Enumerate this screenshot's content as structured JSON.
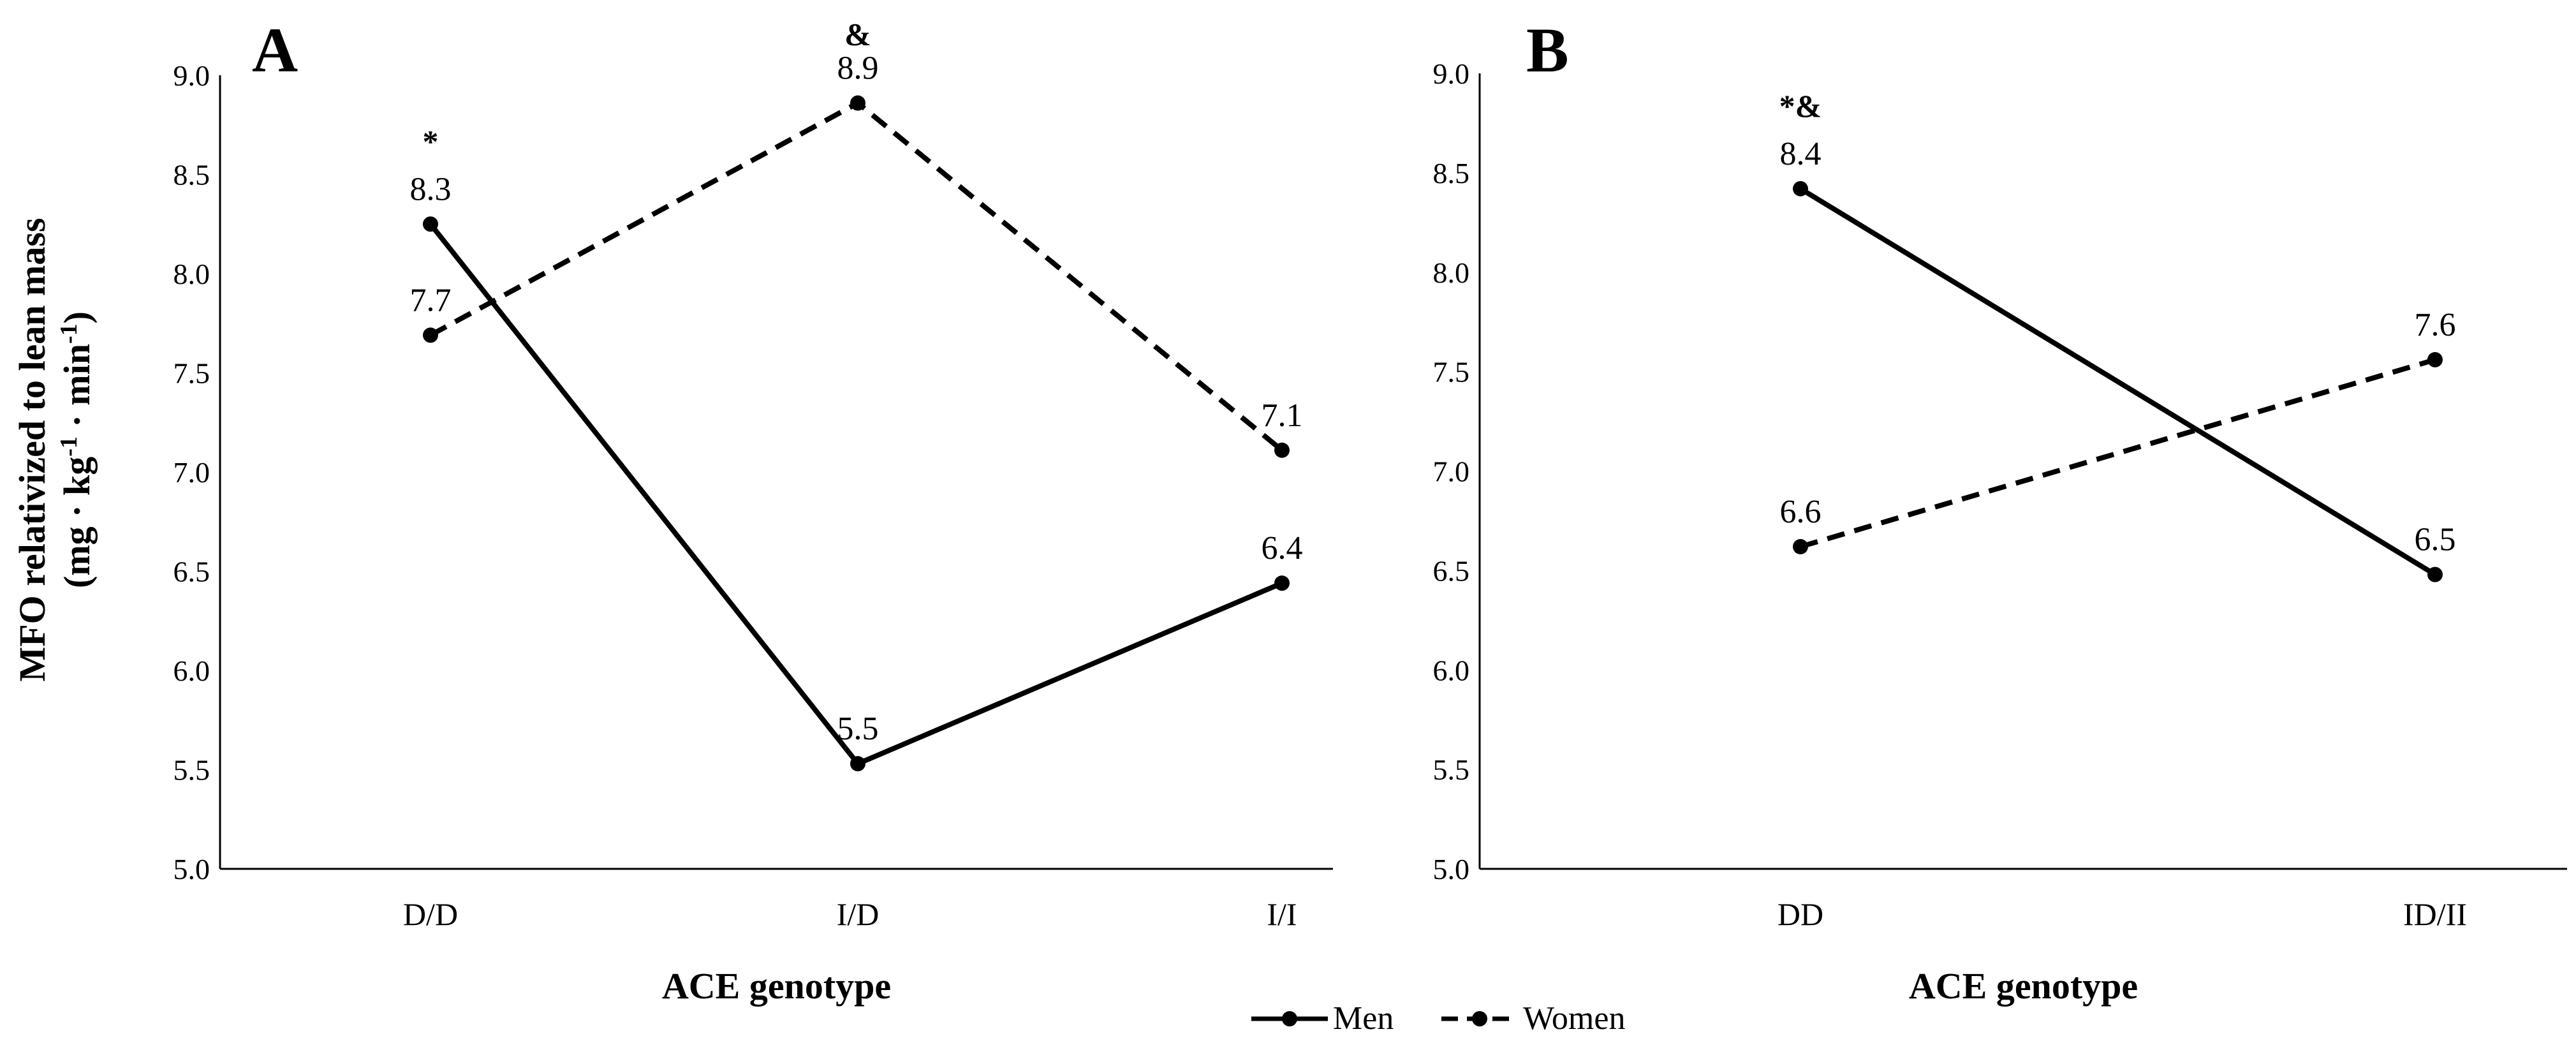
{
  "y_axis_title": {
    "line1": "MFO relativized to lean mass",
    "line2_prefix": "(mg · kg",
    "line2_sup1": "-1",
    "line2_mid": " · min",
    "line2_sup2": "-1",
    "line2_suffix": ")"
  },
  "legend": [
    {
      "name": "Men",
      "style": "solid"
    },
    {
      "name": "Women",
      "style": "dashed"
    }
  ],
  "chart_data": [
    {
      "type": "line",
      "panel_label": "A",
      "categories": [
        "D/D",
        "I/D",
        "I/I"
      ],
      "series": [
        {
          "name": "Men",
          "style": "solid",
          "values": [
            8.25,
            5.53,
            6.44
          ],
          "labels": [
            "8.3",
            "5.5",
            "6.4"
          ]
        },
        {
          "name": "Women",
          "style": "dashed",
          "values": [
            7.69,
            8.86,
            7.11
          ],
          "labels": [
            "7.7",
            "8.9",
            "7.1"
          ]
        }
      ],
      "annotations": [
        {
          "text": "*",
          "category": "D/D",
          "value": 8.67
        },
        {
          "text": "&",
          "category": "I/D",
          "value": 9.21
        }
      ],
      "xlabel": "ACE genotype",
      "ylabel": "MFO relativized to lean mass (mg · kg-1 · min-1)",
      "ylim": [
        5.0,
        9.0
      ],
      "yticks": [
        "5.0",
        "5.5",
        "6.0",
        "6.5",
        "7.0",
        "7.5",
        "8.0",
        "8.5",
        "9.0"
      ],
      "grid": false
    },
    {
      "type": "line",
      "panel_label": "B",
      "categories": [
        "DD",
        "ID/II"
      ],
      "series": [
        {
          "name": "Men",
          "style": "solid",
          "values": [
            8.42,
            6.48
          ],
          "labels": [
            "8.4",
            "6.5"
          ]
        },
        {
          "name": "Women",
          "style": "dashed",
          "values": [
            6.62,
            7.56
          ],
          "labels": [
            "6.6",
            "7.6"
          ]
        }
      ],
      "annotations": [
        {
          "text": "*&",
          "category": "DD",
          "value": 8.84
        }
      ],
      "xlabel": "ACE genotype",
      "ylabel": "",
      "ylim": [
        5.0,
        9.0
      ],
      "yticks": [
        "5.0",
        "5.5",
        "6.0",
        "6.5",
        "7.0",
        "7.5",
        "8.0",
        "8.5",
        "9.0"
      ],
      "grid": false
    }
  ]
}
